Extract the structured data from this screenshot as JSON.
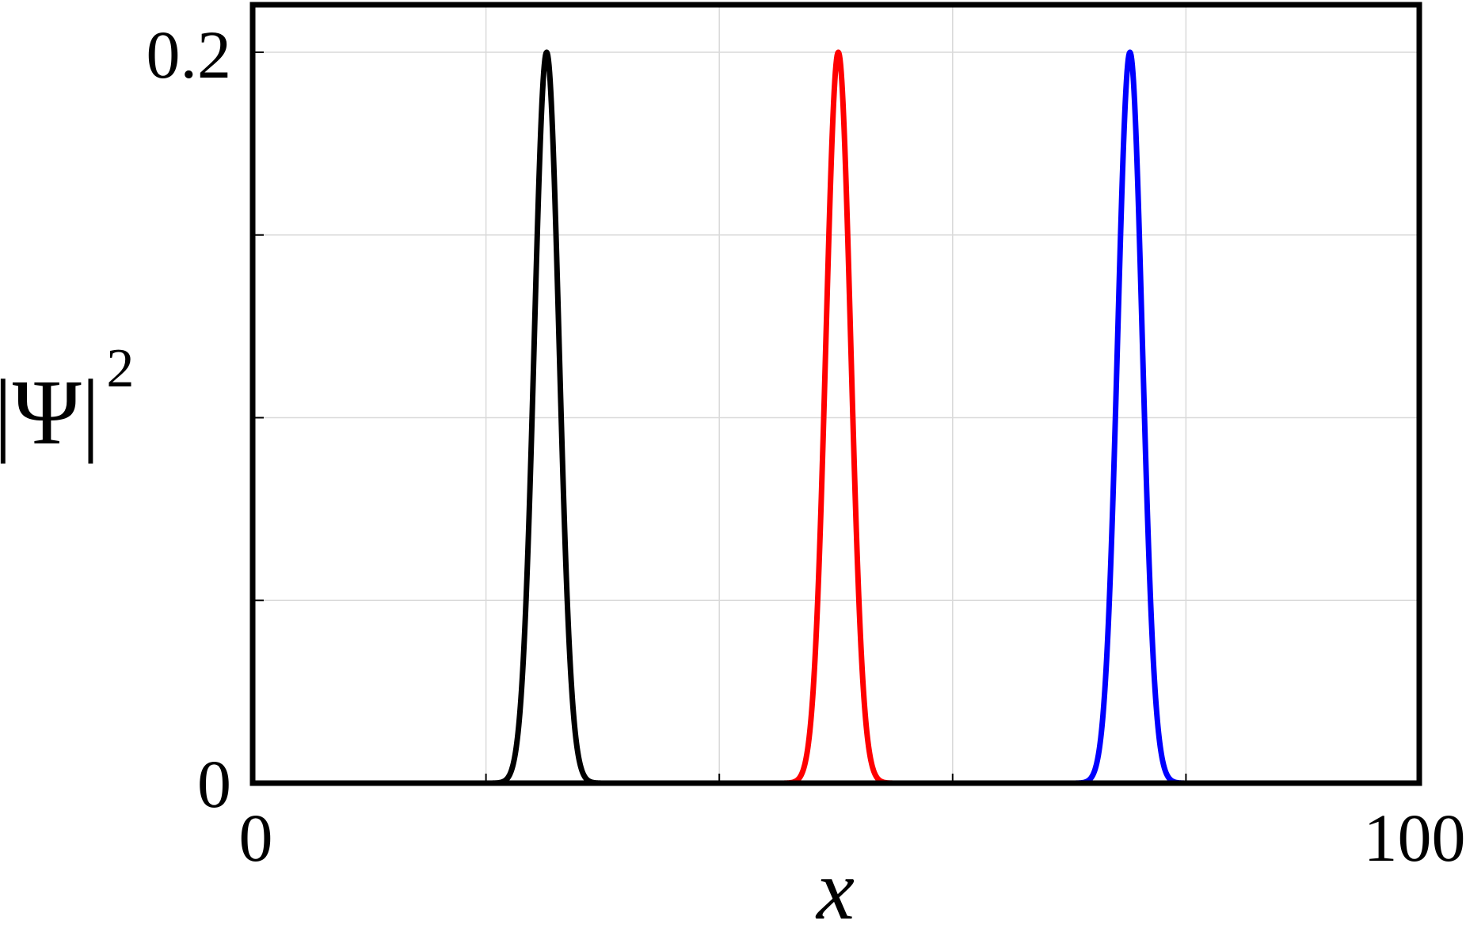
{
  "chart_data": {
    "type": "line",
    "title": "",
    "xlabel": "x",
    "ylabel": "|Ψ|",
    "ylabel_superscript": "2",
    "xlim": [
      0,
      100
    ],
    "ylim": [
      0,
      0.2
    ],
    "xticks": [
      0,
      20,
      40,
      60,
      80,
      100
    ],
    "xtick_labels": [
      "0",
      "",
      "",
      "",
      "",
      "100"
    ],
    "yticks": [
      0,
      0.05,
      0.1,
      0.15,
      0.2
    ],
    "ytick_labels": [
      "0",
      "",
      "",
      "",
      "0.2"
    ],
    "grid": true,
    "legend": "none",
    "series": [
      {
        "color": "#000000",
        "center": 25.2,
        "peak": 0.2,
        "width": 1.5
      },
      {
        "color": "#ff0000",
        "center": 50.2,
        "peak": 0.2,
        "width": 1.5
      },
      {
        "color": "#0000ff",
        "center": 75.2,
        "peak": 0.2,
        "width": 1.5
      }
    ]
  }
}
